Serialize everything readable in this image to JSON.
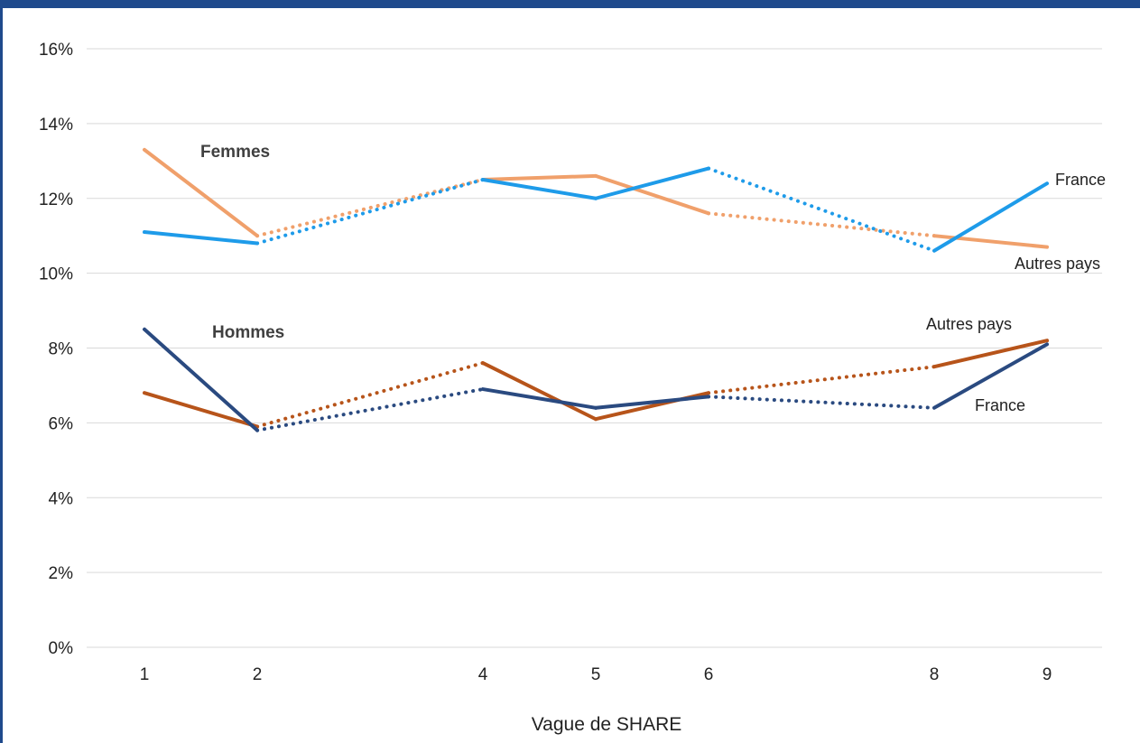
{
  "chart_data": {
    "type": "line",
    "xlabel": "Vague de SHARE",
    "ylabel": "",
    "x": [
      1,
      2,
      4,
      5,
      6,
      8,
      9
    ],
    "ylim": [
      0,
      16
    ],
    "yticks": [
      0,
      2,
      4,
      6,
      8,
      10,
      12,
      14,
      16
    ],
    "ytick_labels": [
      "0%",
      "2%",
      "4%",
      "6%",
      "8%",
      "10%",
      "12%",
      "14%",
      "16%"
    ],
    "grid": "horizontal",
    "group_labels": {
      "women": "Femmes",
      "men": "Hommes"
    },
    "series": [
      {
        "name": "Autres pays",
        "group": "Femmes",
        "color": "#f0a06b",
        "values": [
          13.3,
          11.0,
          12.5,
          12.6,
          11.6,
          11.0,
          10.7
        ]
      },
      {
        "name": "France",
        "group": "Femmes",
        "color": "#1e9be9",
        "values": [
          11.1,
          10.8,
          12.5,
          12.0,
          12.8,
          10.6,
          12.4
        ]
      },
      {
        "name": "Autres pays",
        "group": "Hommes",
        "color": "#b7541a",
        "values": [
          6.8,
          5.9,
          7.6,
          6.1,
          6.8,
          7.5,
          8.2
        ]
      },
      {
        "name": "France",
        "group": "Hommes",
        "color": "#2a4a80",
        "values": [
          8.5,
          5.8,
          6.9,
          6.4,
          6.7,
          6.4,
          8.1
        ]
      }
    ],
    "dotted_segments": [
      [
        2,
        4
      ],
      [
        6,
        8
      ]
    ]
  }
}
